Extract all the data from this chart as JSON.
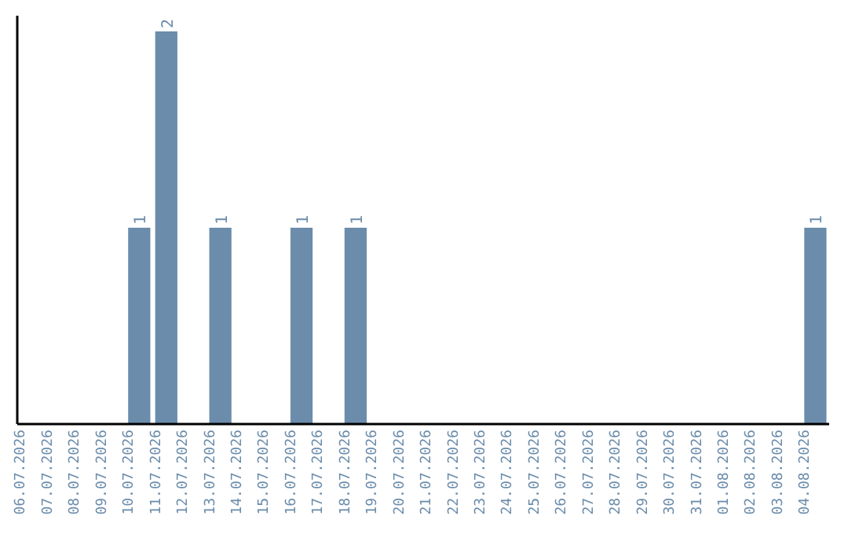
{
  "chart_data": {
    "type": "bar",
    "categories": [
      "06.07.2026",
      "07.07.2026",
      "08.07.2026",
      "09.07.2026",
      "10.07.2026",
      "11.07.2026",
      "12.07.2026",
      "13.07.2026",
      "14.07.2026",
      "15.07.2026",
      "16.07.2026",
      "17.07.2026",
      "18.07.2026",
      "19.07.2026",
      "20.07.2026",
      "21.07.2026",
      "22.07.2026",
      "23.07.2026",
      "24.07.2026",
      "25.07.2026",
      "26.07.2026",
      "27.07.2026",
      "28.07.2026",
      "29.07.2026",
      "30.07.2026",
      "31.07.2026",
      "01.08.2026",
      "02.08.2026",
      "03.08.2026",
      "04.08.2026"
    ],
    "values": [
      0,
      0,
      0,
      0,
      1,
      2,
      0,
      1,
      0,
      0,
      1,
      0,
      1,
      0,
      0,
      0,
      0,
      0,
      0,
      0,
      0,
      0,
      0,
      0,
      0,
      0,
      0,
      0,
      0,
      1
    ],
    "value_labels": [
      null,
      null,
      null,
      null,
      "1",
      "2",
      null,
      "1",
      null,
      null,
      "1",
      null,
      "1",
      null,
      null,
      null,
      null,
      null,
      null,
      null,
      null,
      null,
      null,
      null,
      null,
      null,
      null,
      null,
      null,
      "1"
    ],
    "color": "#6b8cab",
    "grid": false
  }
}
